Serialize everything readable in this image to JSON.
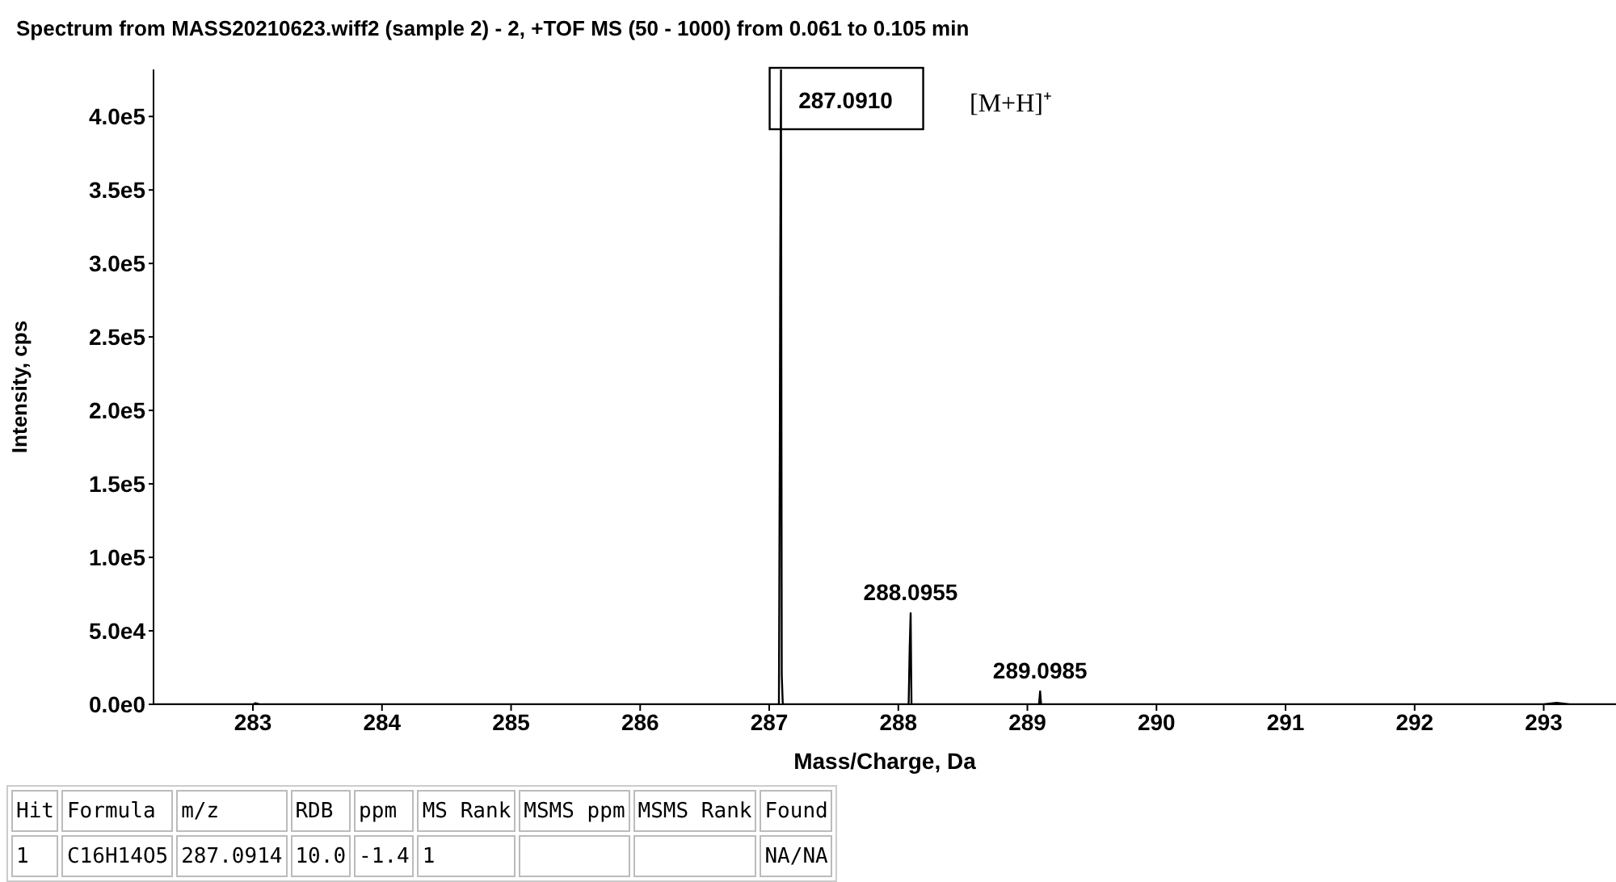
{
  "chart_data": {
    "type": "line",
    "title": "Spectrum from MASS20210623.wiff2 (sample 2) - 2, +TOF MS (50 - 1000) from 0.061 to 0.105 min",
    "xlabel": "Mass/Charge, Da",
    "ylabel": "Intensity, cps",
    "x": [
      282.23,
      283.0,
      283.02,
      283.05,
      286.95,
      287.075,
      287.082,
      287.085,
      287.091,
      287.097,
      287.105,
      288.08,
      288.088,
      288.0955,
      288.102,
      289.09,
      289.0985,
      289.106,
      293.0,
      293.1,
      293.2,
      293.56
    ],
    "values": [
      0,
      0,
      800,
      0,
      0,
      0,
      180000,
      290000,
      432000,
      20000,
      0,
      0,
      38000,
      62000,
      0,
      0,
      8800,
      0,
      0,
      1000,
      0,
      0
    ],
    "color": "#000000",
    "marker": "none",
    "xlim": [
      282.23,
      293.56
    ],
    "xticks": [
      283,
      284,
      285,
      286,
      287,
      288,
      289,
      290,
      291,
      292,
      293
    ],
    "ylim": [
      0,
      432000
    ],
    "yticks": [
      {
        "value": 0,
        "label": "0.0e0"
      },
      {
        "value": 50000,
        "label": "5.0e4"
      },
      {
        "value": 100000,
        "label": "1.0e5"
      },
      {
        "value": 150000,
        "label": "1.5e5"
      },
      {
        "value": 200000,
        "label": "2.0e5"
      },
      {
        "value": 250000,
        "label": "2.5e5"
      },
      {
        "value": 300000,
        "label": "3.0e5"
      },
      {
        "value": 350000,
        "label": "3.5e5"
      },
      {
        "value": 400000,
        "label": "4.0e5"
      }
    ],
    "annotations": [
      {
        "text": "287.0910",
        "x": 287.091,
        "y": 432000
      },
      "[M+H]⁺",
      {
        "text": "288.0955",
        "x": 288.0955,
        "y": 62000
      },
      {
        "text": "289.0985",
        "x": 289.0985,
        "y": 8800
      },
      "Hit",
      "Formula",
      "m/z",
      "RDB",
      "ppm",
      "MS Rank",
      "MSMS ppm",
      "MSMS Rank",
      "Found",
      "1",
      "C16H14O5",
      "287.0914",
      "10.0",
      "-1.4",
      "1",
      null,
      null,
      "NA/NA"
    ]
  }
}
